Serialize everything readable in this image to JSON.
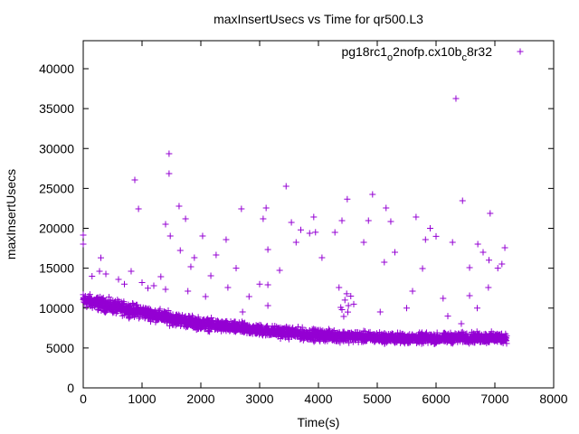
{
  "chart_data": {
    "type": "scatter",
    "title": "maxInsertUsecs vs Time for qr500.L3",
    "xlabel": "Time(s)",
    "ylabel": "maxInsertUsecs",
    "xlim": [
      0,
      8000
    ],
    "ylim": [
      0,
      43000
    ],
    "xticks": [
      0,
      1000,
      2000,
      3000,
      4000,
      5000,
      6000,
      7000,
      8000
    ],
    "yticks": [
      0,
      5000,
      10000,
      15000,
      20000,
      25000,
      30000,
      35000,
      40000
    ],
    "grid": false,
    "legend_position": "top-right",
    "legend": {
      "parts": [
        "pg18rc1",
        "o",
        "2nofp.cx10b",
        "c",
        "8r32"
      ]
    },
    "color": "#9400d3",
    "series": [
      {
        "name": "pg18rc1_o2nofp.cx10b_c8r32",
        "band": {
          "x": [
            0,
            500,
            1000,
            1500,
            2000,
            2500,
            3000,
            3500,
            4000,
            4500,
            5000,
            5500,
            6000,
            6500,
            7000,
            7200
          ],
          "lower": [
            9800,
            9000,
            8400,
            7600,
            7000,
            6600,
            6300,
            5900,
            5600,
            5500,
            5400,
            5300,
            5300,
            5400,
            5300,
            5400
          ],
          "upper": [
            12200,
            11400,
            10600,
            9800,
            9100,
            8600,
            8200,
            7900,
            7600,
            7400,
            7200,
            7100,
            7100,
            7200,
            7200,
            7200
          ]
        },
        "points": [
          [
            0,
            19150
          ],
          [
            0,
            18010
          ],
          [
            6338,
            36260
          ],
          [
            1460,
            29350
          ],
          [
            1460,
            26860
          ],
          [
            877,
            26060
          ],
          [
            940,
            22440
          ],
          [
            3450,
            25270
          ],
          [
            4920,
            24250
          ],
          [
            4490,
            23660
          ],
          [
            6450,
            23460
          ],
          [
            1630,
            22770
          ],
          [
            2690,
            22440
          ],
          [
            3110,
            22550
          ],
          [
            6920,
            21870
          ],
          [
            5150,
            22550
          ],
          [
            5230,
            20850
          ],
          [
            5660,
            21420
          ],
          [
            4850,
            20960
          ],
          [
            3060,
            21190
          ],
          [
            3540,
            20740
          ],
          [
            3920,
            21420
          ],
          [
            4400,
            20960
          ],
          [
            1400,
            20510
          ],
          [
            1740,
            21190
          ],
          [
            1480,
            19040
          ],
          [
            2030,
            19040
          ],
          [
            2430,
            18580
          ],
          [
            3850,
            19380
          ],
          [
            4280,
            19490
          ],
          [
            4770,
            18240
          ],
          [
            5820,
            18580
          ],
          [
            6280,
            18240
          ],
          [
            6710,
            18010
          ],
          [
            7170,
            17560
          ],
          [
            3140,
            17340
          ],
          [
            3620,
            18240
          ],
          [
            1650,
            17220
          ],
          [
            1890,
            16320
          ],
          [
            2260,
            16660
          ],
          [
            4060,
            16320
          ],
          [
            5120,
            15750
          ],
          [
            5770,
            14960
          ],
          [
            6570,
            15070
          ],
          [
            7120,
            15520
          ],
          [
            3340,
            14730
          ],
          [
            1830,
            15180
          ],
          [
            815,
            14620
          ],
          [
            277,
            14620
          ],
          [
            385,
            14280
          ],
          [
            1320,
            13940
          ],
          [
            2170,
            14050
          ],
          [
            2460,
            12580
          ],
          [
            3140,
            12920
          ],
          [
            1780,
            12120
          ],
          [
            2080,
            11440
          ],
          [
            1400,
            12350
          ],
          [
            4350,
            12580
          ],
          [
            5600,
            12120
          ],
          [
            6120,
            11220
          ],
          [
            6570,
            11560
          ],
          [
            6890,
            12580
          ],
          [
            2710,
            9520
          ],
          [
            5050,
            9520
          ],
          [
            4380,
            10080
          ],
          [
            4430,
            8950
          ],
          [
            4510,
            10310
          ],
          [
            3140,
            10310
          ],
          [
            6430,
            8050
          ],
          [
            2820,
            11440
          ],
          [
            300,
            16300
          ],
          [
            150,
            14000
          ],
          [
            600,
            13600
          ],
          [
            1000,
            13200
          ],
          [
            1200,
            12800
          ],
          [
            700,
            13000
          ],
          [
            4450,
            11000
          ],
          [
            4550,
            11500
          ],
          [
            4600,
            10500
          ],
          [
            4500,
            9500
          ],
          [
            4400,
            9800
          ],
          [
            4480,
            11800
          ],
          [
            3700,
            19800
          ],
          [
            3950,
            19500
          ],
          [
            5900,
            20000
          ],
          [
            6000,
            19000
          ],
          [
            6800,
            17000
          ],
          [
            6900,
            16000
          ],
          [
            7050,
            15000
          ],
          [
            5300,
            17000
          ],
          [
            2600,
            15000
          ],
          [
            3000,
            13000
          ],
          [
            1100,
            12500
          ],
          [
            5500,
            10000
          ],
          [
            6200,
            9000
          ],
          [
            6700,
            10000
          ]
        ]
      }
    ]
  }
}
